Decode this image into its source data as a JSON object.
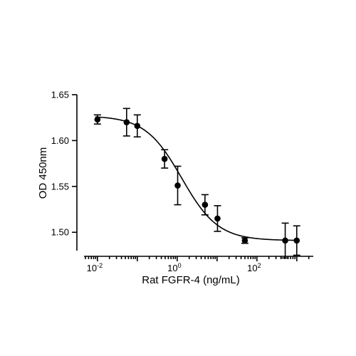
{
  "chart_data": {
    "type": "scatter",
    "xscale": "log",
    "xlabel": "Rat FGFR-4 (ng/mL)",
    "ylabel": "OD 450nm",
    "xlim": [
      0.005,
      2000
    ],
    "ylim": [
      1.48,
      1.65
    ],
    "grid": false,
    "legend": "none",
    "yticks": [
      {
        "value": 1.5,
        "label": "1.50"
      },
      {
        "value": 1.55,
        "label": "1.55"
      },
      {
        "value": 1.6,
        "label": "1.60"
      },
      {
        "value": 1.65,
        "label": "1.65"
      }
    ],
    "xticks_major": [
      {
        "value": 0.01,
        "base": "10",
        "exp": "-2"
      },
      {
        "value": 1,
        "base": "10",
        "exp": "0"
      },
      {
        "value": 100,
        "base": "10",
        "exp": "2"
      }
    ],
    "points": [
      {
        "x": 0.01,
        "y": 1.623,
        "err": 0.005
      },
      {
        "x": 0.0539,
        "y": 1.62,
        "err": 0.015
      },
      {
        "x": 0.0997,
        "y": 1.616,
        "err": 0.012
      },
      {
        "x": 0.483,
        "y": 1.58,
        "err": 0.01
      },
      {
        "x": 1.028,
        "y": 1.551,
        "err": 0.021
      },
      {
        "x": 4.98,
        "y": 1.53,
        "err": 0.011
      },
      {
        "x": 10.25,
        "y": 1.515,
        "err": 0.014
      },
      {
        "x": 49.8,
        "y": 1.491,
        "err": 0.003
      },
      {
        "x": 512,
        "y": 1.491,
        "err": 0.019
      },
      {
        "x": 996,
        "y": 1.491,
        "err": 0.016
      }
    ],
    "fit": {
      "model": "4PL",
      "top": 1.627,
      "bottom": 1.491,
      "ec50": 1.3,
      "hill": 0.95
    },
    "colors": {
      "marker": "#000000",
      "line": "#000000"
    }
  }
}
